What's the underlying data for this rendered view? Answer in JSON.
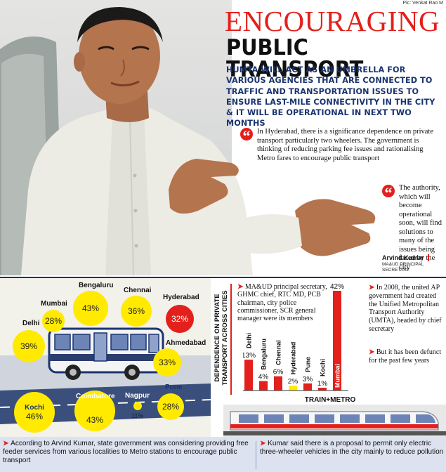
{
  "credit": "Pic: Venkat Rao M",
  "headline": {
    "line1": "ENCOURAGING",
    "line2": "PUBLIC TRANSPORT"
  },
  "subhead": "HUMTA WILL ACT AS AN UMBRELLA FOR VARIOUS AGENCIES THAT ARE CONNECTED TO TRAFFIC AND TRANSPORTATION ISSUES TO ENSURE LAST-MILE CONNECTIVITY IN THE CITY & IT WILL BE OPERATIONAL IN NEXT TWO MONTHS",
  "quote1": "In Hyderabad, there is a significance dependence on private transport particularly two wheelers. The government is thinking of reducing parking fee issues and rationalising Metro fares to encourage public transport",
  "quote2": "The authority, which will become operational soon, will find solutions to many of the issues being faced by the city",
  "speaker": {
    "name": "Arvind Kumar",
    "title": "MA&UD PRINCIPAL SECRETARY"
  },
  "cities": [
    {
      "name": "Bengaluru",
      "value": "43%"
    },
    {
      "name": "Chennai",
      "value": "36%"
    },
    {
      "name": "Hyderabad",
      "value": "32%"
    },
    {
      "name": "Mumbai",
      "value": "28%"
    },
    {
      "name": "Delhi",
      "value": "39%"
    },
    {
      "name": "Ahmedabad",
      "value": "33%"
    },
    {
      "name": "Kochi",
      "value": "46%"
    },
    {
      "name": "Coimbatore",
      "value": "43%"
    },
    {
      "name": "Nagpur",
      "value": "11%"
    },
    {
      "name": "Pune",
      "value": "28%"
    }
  ],
  "dependence_label": "DEPENDENCE ON PRIVATE TRANSPORT ACROSS CITIES",
  "members_note": "MA&UD principal secretary, GHMC chief, RTC MD, PCB chairman, city police commissioner, SCR general manager were its members",
  "chart_data": {
    "type": "bar",
    "title": "TRAIN+METRO",
    "categories": [
      "Delhi",
      "Bengaluru",
      "Chennai",
      "Hyderabad",
      "Pune",
      "Kochi",
      "Mumbai"
    ],
    "values": [
      13,
      4,
      6,
      2,
      3,
      1,
      42
    ],
    "labels": [
      "13%",
      "4%",
      "6%",
      "2%",
      "3%",
      "1%",
      "42%"
    ],
    "highlight": "Hyderabad",
    "bar_color": "#e3201b",
    "highlight_color": "#ffea00",
    "ylim": [
      0,
      42
    ]
  },
  "umta_note": "In 2008, the united AP government had created the Unified Metropolitan Transport Authority (UMTA), headed by chief secretary",
  "defunct_note": "But it has been defunct for the past few years",
  "footer": {
    "left": "According to Arvind Kumar, state government was considering providing free feeder services from various localities to Metro stations to encourage public transport",
    "right": "Kumar said there is a proposal to permit only electric three-wheeler vehicles in the city mainly to reduce pollution"
  },
  "colors": {
    "accent_red": "#e3201b",
    "navy": "#1a3470",
    "bubble_yellow": "#ffea00",
    "footer_bg": "#dce2ef"
  }
}
